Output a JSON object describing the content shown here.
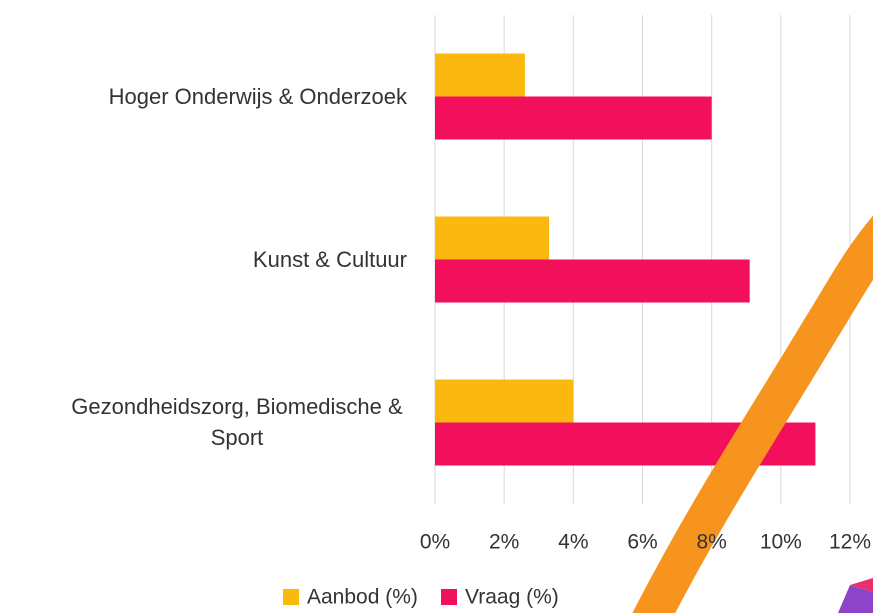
{
  "chart_data": {
    "type": "hbar",
    "categories": [
      "Hoger Onderwijs & Onderzoek",
      "Kunst & Cultuur",
      "Gezondheidszorg, Biomedische & Sport"
    ],
    "series": [
      {
        "name": "Aanbod (%)",
        "color": "#fbb80f",
        "values": [
          2.6,
          3.3,
          4.0
        ]
      },
      {
        "name": "Vraag (%)",
        "color": "#f2105c",
        "values": [
          8.0,
          9.1,
          11.0
        ]
      }
    ],
    "xlim": [
      0,
      12
    ],
    "xticks": [
      {
        "value": 0,
        "label": "0%"
      },
      {
        "value": 2,
        "label": "2%"
      },
      {
        "value": 4,
        "label": "4%"
      },
      {
        "value": 6,
        "label": "6%"
      },
      {
        "value": 8,
        "label": "8%"
      },
      {
        "value": 10,
        "label": "10%"
      },
      {
        "value": 12,
        "label": "12%"
      }
    ],
    "grid": true,
    "legend": "bottom"
  }
}
